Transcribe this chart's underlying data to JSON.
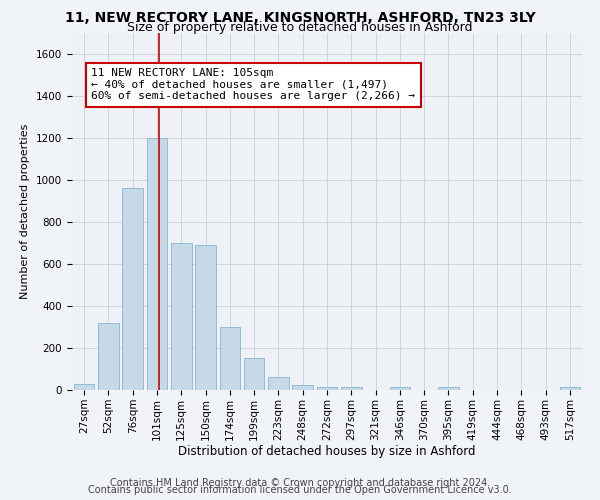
{
  "title1": "11, NEW RECTORY LANE, KINGSNORTH, ASHFORD, TN23 3LY",
  "title2": "Size of property relative to detached houses in Ashford",
  "xlabel": "Distribution of detached houses by size in Ashford",
  "ylabel": "Number of detached properties",
  "categories": [
    "27sqm",
    "52sqm",
    "76sqm",
    "101sqm",
    "125sqm",
    "150sqm",
    "174sqm",
    "199sqm",
    "223sqm",
    "248sqm",
    "272sqm",
    "297sqm",
    "321sqm",
    "346sqm",
    "370sqm",
    "395sqm",
    "419sqm",
    "444sqm",
    "468sqm",
    "493sqm",
    "517sqm"
  ],
  "values": [
    27,
    320,
    960,
    1200,
    700,
    690,
    300,
    150,
    60,
    25,
    15,
    15,
    0,
    15,
    0,
    15,
    0,
    0,
    0,
    0,
    15
  ],
  "bar_color": "#c6d9e8",
  "bar_edge_color": "#8ab4cc",
  "red_line_x": 3.08,
  "ylim": [
    0,
    1700
  ],
  "yticks": [
    0,
    200,
    400,
    600,
    800,
    1000,
    1200,
    1400,
    1600
  ],
  "annotation_line1": "11 NEW RECTORY LANE: 105sqm",
  "annotation_line2": "← 40% of detached houses are smaller (1,497)",
  "annotation_line3": "60% of semi-detached houses are larger (2,266) →",
  "annotation_box_color": "#ffffff",
  "annotation_border_color": "#cc0000",
  "footer1": "Contains HM Land Registry data © Crown copyright and database right 2024.",
  "footer2": "Contains public sector information licensed under the Open Government Licence v3.0.",
  "background_color": "#f0f4f8",
  "plot_bg_color": "#eef2f7",
  "grid_color": "#c8d0dc",
  "title1_fontsize": 10,
  "title2_fontsize": 9,
  "xlabel_fontsize": 8.5,
  "ylabel_fontsize": 8,
  "tick_fontsize": 7.5,
  "footer_fontsize": 7,
  "annot_fontsize": 8,
  "red_line_color": "#cc0000"
}
